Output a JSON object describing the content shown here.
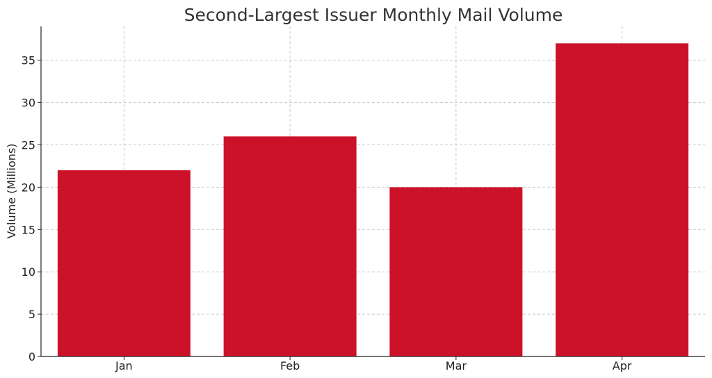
{
  "chart_data": {
    "type": "bar",
    "title": "Second-Largest Issuer Monthly Mail Volume",
    "xlabel": "",
    "ylabel": "Volume (Millions)",
    "categories": [
      "Jan",
      "Feb",
      "Mar",
      "Apr"
    ],
    "values": [
      22,
      26,
      20,
      37
    ],
    "ylim": [
      0,
      39
    ],
    "yticks": [
      0,
      5,
      10,
      15,
      20,
      25,
      30,
      35
    ],
    "grid": true,
    "legend": "none",
    "bar_color": "#cc1229"
  }
}
